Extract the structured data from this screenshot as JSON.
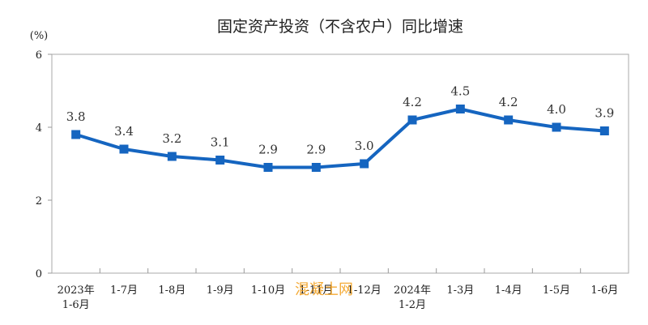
{
  "chart_data": {
    "type": "line",
    "title": "固定资产投资（不含农户）同比增速",
    "unit_label": "(%)",
    "categories": [
      [
        "2023年",
        "1-6月"
      ],
      [
        "1-7月"
      ],
      [
        "1-8月"
      ],
      [
        "1-9月"
      ],
      [
        "1-10月"
      ],
      [
        "1-11月"
      ],
      [
        "1-12月"
      ],
      [
        "2024年",
        "1-2月"
      ],
      [
        "1-3月"
      ],
      [
        "1-4月"
      ],
      [
        "1-5月"
      ],
      [
        "1-6月"
      ]
    ],
    "values": [
      3.8,
      3.4,
      3.2,
      3.1,
      2.9,
      2.9,
      3.0,
      4.2,
      4.5,
      4.2,
      4.0,
      3.9
    ],
    "data_labels": [
      "3.8",
      "3.4",
      "3.2",
      "3.1",
      "2.9",
      "2.9",
      "3.0",
      "4.2",
      "4.5",
      "4.2",
      "4.0",
      "3.9"
    ],
    "ylim": [
      0,
      6
    ],
    "yticks": [
      0,
      2,
      4,
      6
    ],
    "grid": false,
    "legend": "none",
    "colors": {
      "line": "#1565c0",
      "marker": "#1565c0",
      "axis": "#999999"
    }
  },
  "watermark": "混凝土网"
}
